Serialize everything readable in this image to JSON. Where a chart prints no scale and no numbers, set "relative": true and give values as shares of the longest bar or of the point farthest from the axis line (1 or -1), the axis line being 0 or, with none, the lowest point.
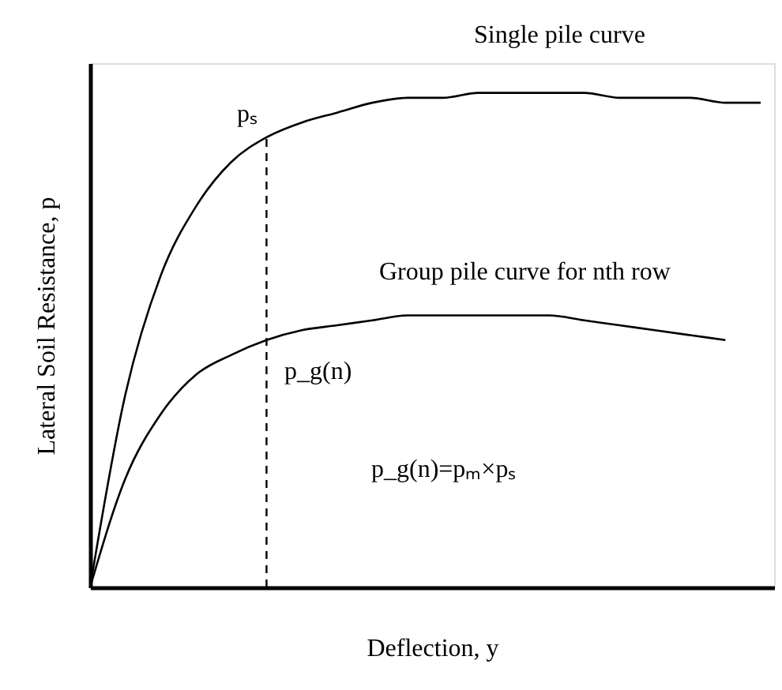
{
  "chart_data": {
    "type": "line",
    "relative": true,
    "xlabel": "Deflection, y",
    "ylabel": "Lateral Soil Resistance, p",
    "categories": [
      null,
      null,
      null,
      null,
      null,
      null,
      null,
      null,
      null,
      null,
      null,
      null,
      null,
      null,
      null,
      null,
      null,
      null,
      null,
      null
    ],
    "series": [
      {
        "color": "#000000",
        "values": [
          0,
          0.39,
          0.63,
          0.77,
          0.86,
          0.91,
          0.94,
          0.96,
          0.98,
          0.99,
          0.99,
          1.0,
          1.0,
          1.0,
          1.0,
          0.99,
          0.99,
          0.99,
          0.98,
          0.98
        ]
      },
      {
        "color": "#000000",
        "values": [
          0,
          0.22,
          0.35,
          0.43,
          0.47,
          0.5,
          0.52,
          0.53,
          0.54,
          0.55,
          0.55,
          0.55,
          0.55,
          0.55,
          0.54,
          0.53,
          0.52,
          0.51,
          0.5,
          null
        ]
      }
    ],
    "annotations": [
      "Single pile curve",
      "pₛ",
      "Group pile curve for nth row",
      "p_g(n)",
      "p_g(n)=pₘ×pₛ"
    ],
    "grid": false,
    "marker": "none",
    "line_style": "solid"
  }
}
